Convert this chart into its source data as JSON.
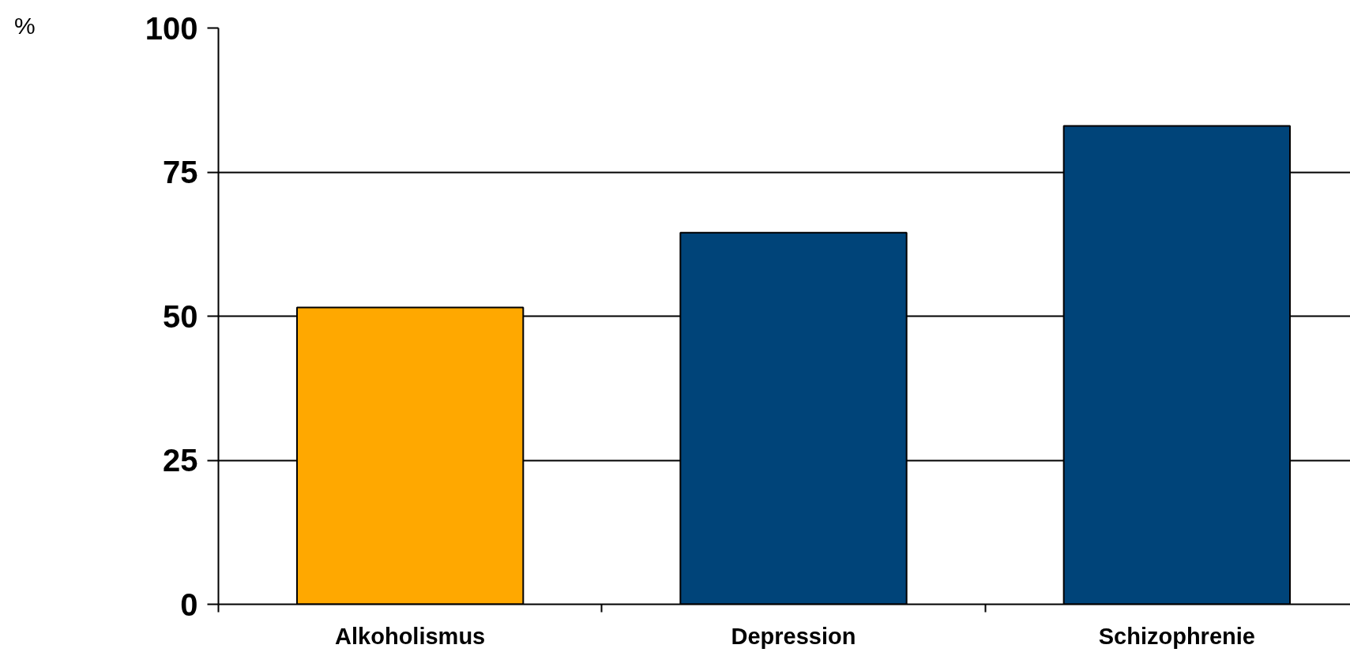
{
  "chart_data": {
    "type": "bar",
    "annotations": [
      "%"
    ],
    "categories": [
      "Alkoholismus",
      "Depression",
      "Schizophrenie"
    ],
    "values": [
      51.5,
      64.5,
      83
    ],
    "colors": [
      "#ffa800",
      "#004479",
      "#004479"
    ],
    "ylim": [
      0,
      100
    ],
    "yticks": [
      0,
      25,
      50,
      75,
      100
    ],
    "grid": "y"
  }
}
